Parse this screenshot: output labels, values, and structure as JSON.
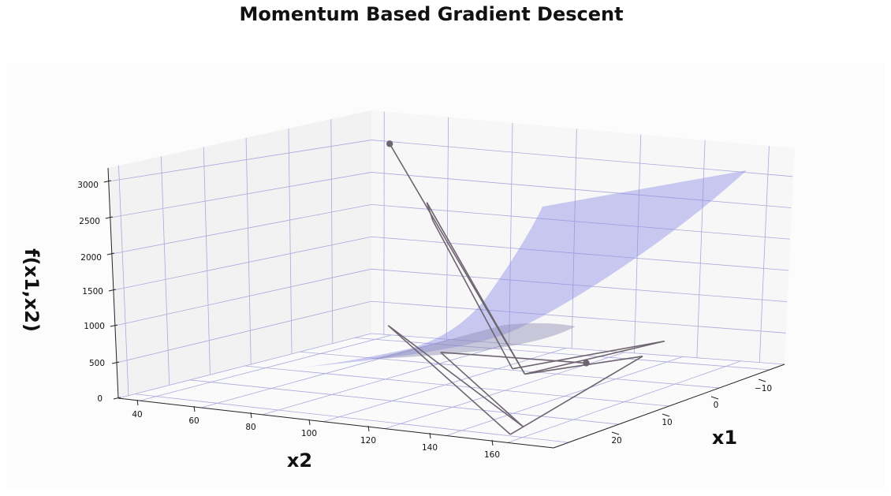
{
  "chart_data": {
    "type": "surface3d",
    "title": "Momentum Based Gradient Descent",
    "xlabel": "x1",
    "ylabel": "x2",
    "zlabel": "f(x1,x2)",
    "x1_ticks": [
      "−10",
      "0",
      "10",
      "20"
    ],
    "x2_ticks": [
      "40",
      "60",
      "80",
      "100",
      "120",
      "140",
      "160"
    ],
    "z_ticks": [
      "0",
      "500",
      "1000",
      "1500",
      "2000",
      "2500",
      "3000"
    ],
    "grid": true,
    "colors": {
      "surface": "#8c8ce6",
      "surface_dark": "#8c8cb4",
      "path": "#6e6470",
      "grid": "#a9a9dd",
      "pane_left": "#f2f2f2",
      "pane_back": "#f7f7f7",
      "floor": "#fbfbfb"
    },
    "path_points": [
      {
        "step": 0,
        "x1": -12,
        "x2": 42,
        "f": 2600
      },
      {
        "step": 1,
        "x1": 4,
        "x2": 118,
        "f": 280
      },
      {
        "step": 2,
        "x1": -10,
        "x2": 58,
        "f": 1950
      },
      {
        "step": 3,
        "x1": -9,
        "x2": 62,
        "f": 1750
      },
      {
        "step": 4,
        "x1": 3,
        "x2": 112,
        "f": 300
      },
      {
        "step": 5,
        "x1": 5,
        "x2": 165,
        "f": 950
      },
      {
        "step": 6,
        "x1": 4,
        "x2": 118,
        "f": 280
      },
      {
        "step": 7,
        "x1": 6,
        "x2": 160,
        "f": 750
      },
      {
        "step": 8,
        "x1": 22,
        "x2": 150,
        "f": 20
      },
      {
        "step": 9,
        "x1": 2,
        "x2": 70,
        "f": 650
      },
      {
        "step": 10,
        "x1": 20,
        "x2": 150,
        "f": 80
      },
      {
        "step": 11,
        "x1": 6,
        "x2": 95,
        "f": 500
      },
      {
        "step": 12,
        "x1": 10,
        "x2": 150,
        "f": 700
      }
    ]
  }
}
